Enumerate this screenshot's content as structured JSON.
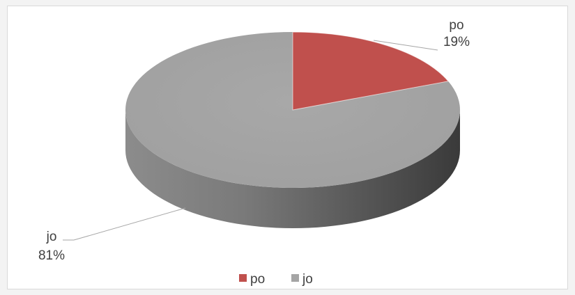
{
  "chart_data": {
    "type": "pie",
    "style": "3d",
    "categories": [
      "po",
      "jo"
    ],
    "values": [
      19,
      81
    ],
    "data_labels": [
      {
        "name": "po",
        "value": "19%"
      },
      {
        "name": "jo",
        "value": "81%"
      }
    ],
    "colors": {
      "po": "#c0504d",
      "jo": "#a5a5a5"
    },
    "legend": {
      "position": "bottom",
      "items": [
        {
          "label": "po",
          "color": "#c0504d"
        },
        {
          "label": "jo",
          "color": "#a5a5a5"
        }
      ]
    }
  }
}
